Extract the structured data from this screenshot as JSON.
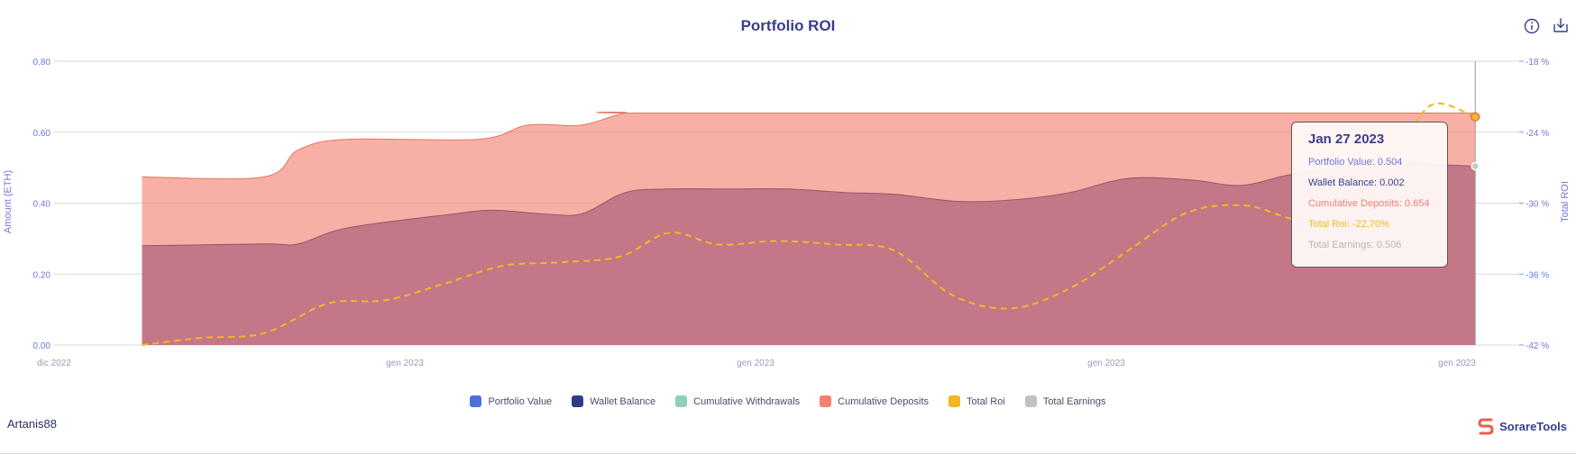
{
  "chart_data": {
    "type": "area",
    "title": "Portfolio ROI",
    "ylabel": "Amount (ETH)",
    "y2label": "Total ROI",
    "ylim": [
      0,
      0.8
    ],
    "y2lim": [
      -42,
      -18
    ],
    "yticks": [
      "0.00",
      "0.20",
      "0.40",
      "0.60",
      "0.80"
    ],
    "y2ticks": [
      "-42 %",
      "-36 %",
      "-30 %",
      "-24 %",
      "-18 %"
    ],
    "xticks": [
      "dic 2022",
      "gen 2023",
      "gen 2023",
      "gen 2023",
      "gen 2023"
    ],
    "xrange": [
      0,
      30
    ],
    "grid": true,
    "legend_position": "bottom",
    "series": [
      {
        "name": "Cumulative Deposits",
        "color": "#f4806f",
        "x": [
          1.8,
          4.3,
          5.0,
          6.0,
          8.7,
          9.7,
          10.8,
          11.7,
          12.6,
          29.1
        ],
        "values": [
          0.474,
          0.474,
          0.55,
          0.58,
          0.58,
          0.62,
          0.62,
          0.654,
          0.654,
          0.654
        ]
      },
      {
        "name": "Portfolio Value",
        "color": "#b5667e",
        "x": [
          1.8,
          4.3,
          5.0,
          6.0,
          8.2,
          9.0,
          10.0,
          10.8,
          11.7,
          12.6,
          13.8,
          15.0,
          16.2,
          17.2,
          18.5,
          19.7,
          20.8,
          22.0,
          23.3,
          24.3,
          25.3,
          26.3,
          27.3,
          28.3,
          29.1
        ],
        "values": [
          0.28,
          0.285,
          0.285,
          0.33,
          0.37,
          0.38,
          0.37,
          0.37,
          0.43,
          0.44,
          0.44,
          0.44,
          0.43,
          0.425,
          0.405,
          0.41,
          0.43,
          0.47,
          0.465,
          0.45,
          0.48,
          0.5,
          0.52,
          0.51,
          0.504
        ]
      },
      {
        "name": "Total Roi",
        "color": "#f5b623",
        "dashed": true,
        "axis": "right",
        "x": [
          1.8,
          3.0,
          4.3,
          5.6,
          6.8,
          8.0,
          9.2,
          10.4,
          11.6,
          12.6,
          13.6,
          14.8,
          16.0,
          17.2,
          18.4,
          19.6,
          20.8,
          22.0,
          23.2,
          24.4,
          25.6,
          26.8,
          27.5,
          28.2,
          29.1
        ],
        "values": [
          -42,
          -41.4,
          -41,
          -38.5,
          -38.2,
          -36.8,
          -35.3,
          -35,
          -34.5,
          -32.5,
          -33.5,
          -33.2,
          -33.5,
          -34,
          -37.8,
          -38.9,
          -37.2,
          -34,
          -30.8,
          -30.2,
          -31.4,
          -29.5,
          -26,
          -21.7,
          -22.7
        ]
      }
    ]
  },
  "legend": [
    {
      "label": "Portfolio Value",
      "color": "#4d6fe0"
    },
    {
      "label": "Wallet Balance",
      "color": "#2f3c8a"
    },
    {
      "label": "Cumulative Withdrawals",
      "color": "#8fd1b2"
    },
    {
      "label": "Cumulative Deposits",
      "color": "#f4806f"
    },
    {
      "label": "Total Roi",
      "color": "#f5b623"
    },
    {
      "label": "Total Earnings",
      "color": "#c2c2c2"
    }
  ],
  "tooltip": {
    "date": "Jan 27 2023",
    "rows": [
      {
        "text": "Portfolio Value: 0.504",
        "color": "#6f78d6"
      },
      {
        "text": "Wallet Balance: 0.002",
        "color": "#3a3d8a"
      },
      {
        "text": "Cumulative Deposits: 0.654",
        "color": "#f4806f"
      },
      {
        "text": "Total Roi: -22.70%",
        "color": "#f5b623"
      },
      {
        "text": "Total Earnings: 0.506",
        "color": "#b8b8b8"
      }
    ]
  },
  "user": {
    "name": "Artanis88"
  },
  "brand": {
    "name": "SorareTools",
    "color": "#e8604d"
  },
  "icons": {
    "info": "info-icon",
    "download": "download-icon"
  }
}
